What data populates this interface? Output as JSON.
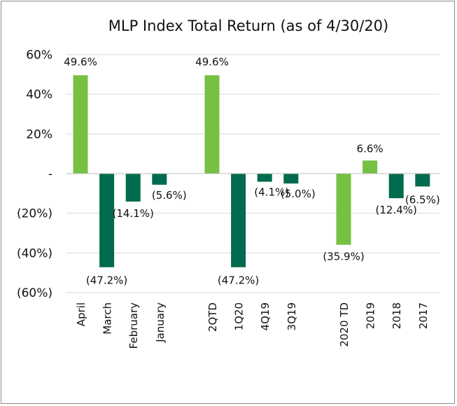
{
  "chart_data": {
    "type": "bar",
    "title": "MLP Index Total Return (as of 4/30/20)",
    "categories": [
      "April",
      "March",
      "February",
      "January",
      "",
      "2QTD",
      "1Q20",
      "4Q19",
      "3Q19",
      "",
      "2020 TD",
      "2019",
      "2018",
      "2017"
    ],
    "values": [
      49.6,
      -47.2,
      -14.1,
      -5.6,
      null,
      49.6,
      -47.2,
      -4.1,
      -5.0,
      null,
      -35.9,
      6.6,
      -12.4,
      -6.5
    ],
    "data_labels": [
      "49.6%",
      "(47.2%)",
      "(14.1%)",
      "(5.6%)",
      "",
      "49.6%",
      "(47.2%)",
      "(4.1%)",
      "(5.0%)",
      "",
      "(35.9%)",
      "6.6%",
      "(12.4%)",
      "(6.5%)"
    ],
    "y_ticks": [
      60,
      40,
      20,
      0,
      -20,
      -40,
      -60
    ],
    "y_tick_labels": [
      "60%",
      "40%",
      "20%",
      "-",
      "(20%)",
      "(40%)",
      "(60%)"
    ],
    "ylim": [
      -60,
      60
    ],
    "grid": true,
    "colors": {
      "positive": "#76c043",
      "negative": "#006b4e",
      "highlight": "#76c043"
    },
    "bar_highlight": [
      true,
      false,
      false,
      false,
      false,
      true,
      false,
      false,
      false,
      false,
      true,
      false,
      false,
      false
    ]
  }
}
